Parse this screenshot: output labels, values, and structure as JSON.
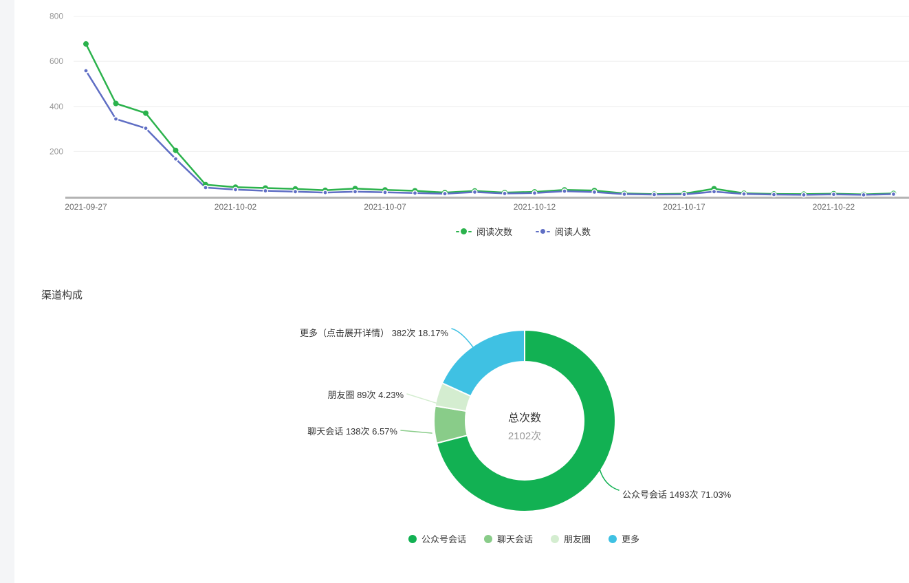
{
  "channel_section": {
    "title": "渠道构成"
  },
  "line_chart": {
    "legend": [
      {
        "label": "阅读次数"
      },
      {
        "label": "阅读人数"
      }
    ]
  },
  "chart_data": [
    {
      "type": "line",
      "title": "",
      "x": [
        "2021-09-27",
        "2021-09-28",
        "2021-09-29",
        "2021-09-30",
        "2021-10-01",
        "2021-10-02",
        "2021-10-03",
        "2021-10-04",
        "2021-10-05",
        "2021-10-06",
        "2021-10-07",
        "2021-10-08",
        "2021-10-09",
        "2021-10-10",
        "2021-10-11",
        "2021-10-12",
        "2021-10-13",
        "2021-10-14",
        "2021-10-15",
        "2021-10-16",
        "2021-10-17",
        "2021-10-18",
        "2021-10-19",
        "2021-10-20",
        "2021-10-21",
        "2021-10-22",
        "2021-10-23",
        "2021-10-24"
      ],
      "x_tick_every": 5,
      "yticks": [
        200,
        400,
        600,
        800
      ],
      "ylim": [
        0,
        800
      ],
      "grid": true,
      "legend_position": "bottom",
      "series": [
        {
          "name": "阅读次数",
          "color": "#2bb24c",
          "values": [
            677,
            413,
            370,
            205,
            53,
            42,
            38,
            34,
            28,
            36,
            30,
            26,
            18,
            25,
            18,
            21,
            30,
            27,
            14,
            11,
            13,
            35,
            15,
            12,
            11,
            13,
            10,
            14
          ]
        },
        {
          "name": "阅读人数",
          "color": "#5f6ec4",
          "values": [
            558,
            344,
            303,
            167,
            40,
            31,
            26,
            22,
            18,
            22,
            19,
            16,
            13,
            20,
            14,
            16,
            24,
            20,
            11,
            9,
            10,
            22,
            12,
            9,
            8,
            10,
            8,
            11
          ]
        }
      ]
    },
    {
      "type": "pie",
      "donut": true,
      "center_label": {
        "title": "总次数",
        "value": "2102次"
      },
      "total": 2102,
      "slices": [
        {
          "name": "公众号会话",
          "count": 1493,
          "pct": 71.03,
          "color": "#12b153",
          "label": "公众号会话 1493次 71.03%"
        },
        {
          "name": "聊天会话",
          "count": 138,
          "pct": 6.57,
          "color": "#89cc89",
          "label": "聊天会话 138次 6.57%"
        },
        {
          "name": "朋友圈",
          "count": 89,
          "pct": 4.23,
          "color": "#d4edd0",
          "label": "朋友圈 89次 4.23%"
        },
        {
          "name": "更多",
          "count": 382,
          "pct": 18.17,
          "color": "#3fc1e3",
          "label": "更多（点击展开详情） 382次 18.17%"
        }
      ],
      "legend": [
        "公众号会话",
        "聊天会话",
        "朋友圈",
        "更多"
      ]
    }
  ]
}
